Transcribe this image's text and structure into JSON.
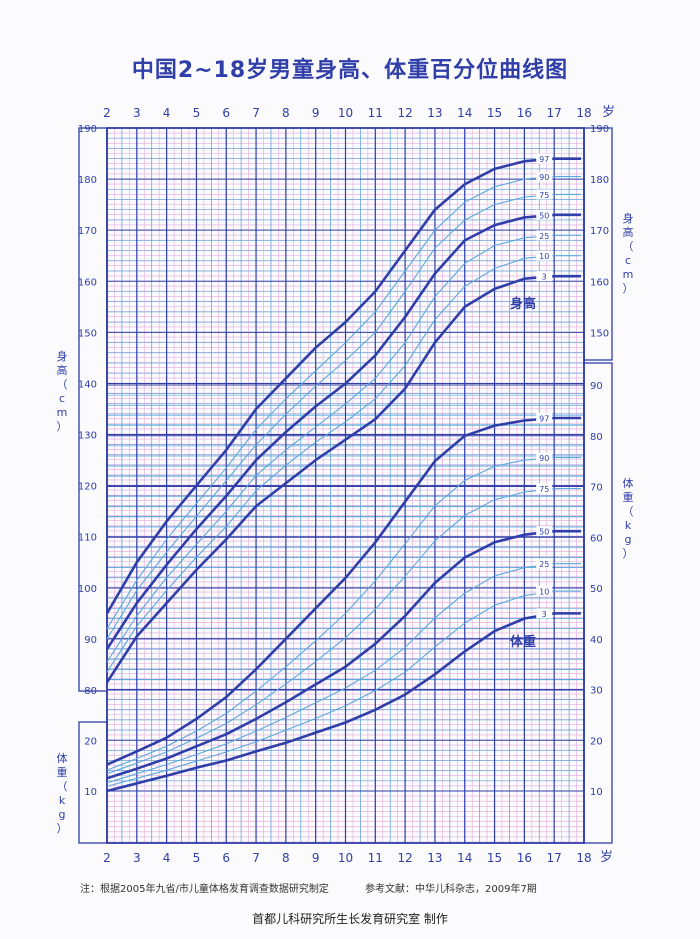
{
  "title": "中国2~18岁男童身高、体重百分位曲线图",
  "footnote": {
    "left": "注：根据2005年九省/市儿童体格发育调查数据研究制定",
    "right": "参考文献：中华儿科杂志，2009年7期"
  },
  "credit": "首都儿科研究所生长发育研究室  制作",
  "colors": {
    "major": "#2f3ea8",
    "minor": "#5aa8dc",
    "fine": "#e2aad8",
    "text": "#2f3ea8"
  },
  "chart_data": {
    "type": "line",
    "x_ticks": [
      "2",
      "3",
      "4",
      "5",
      "6",
      "7",
      "8",
      "9",
      "10",
      "11",
      "12",
      "13",
      "14",
      "15",
      "16",
      "17",
      "18"
    ],
    "x_unit": "岁",
    "height_axis_left": {
      "label": "身高（cm）",
      "ticks": [
        "80",
        "90",
        "100",
        "110",
        "120",
        "130",
        "140",
        "150",
        "160",
        "170",
        "180",
        "190"
      ]
    },
    "height_axis_right": {
      "label": "身高（cm）",
      "ticks": [
        "150",
        "160",
        "170",
        "180",
        "190"
      ]
    },
    "weight_axis_left": {
      "label": "体重（kg）",
      "ticks": [
        "10",
        "20"
      ]
    },
    "weight_axis_right": {
      "label": "体重（kg）",
      "ticks": [
        "10",
        "20",
        "30",
        "40",
        "50",
        "60",
        "70",
        "80",
        "90"
      ]
    },
    "height_label": "身高",
    "weight_label": "体重",
    "height_series": [
      {
        "name": "97",
        "x": [
          2,
          3,
          4,
          5,
          6,
          7,
          8,
          9,
          10,
          11,
          12,
          13,
          14,
          15,
          16,
          17
        ],
        "y": [
          95,
          105,
          113,
          120,
          127,
          135,
          141,
          147,
          152,
          158,
          166,
          174,
          179,
          182,
          183.5,
          184
        ]
      },
      {
        "name": "90",
        "x": [
          2,
          3,
          4,
          5,
          6,
          7,
          8,
          9,
          10,
          11,
          12,
          13,
          14,
          15,
          16,
          17
        ],
        "y": [
          92,
          101.5,
          109.5,
          116.5,
          123.5,
          131,
          137,
          142.5,
          148,
          154,
          162,
          170,
          175.5,
          178.5,
          180,
          180.5
        ]
      },
      {
        "name": "75",
        "x": [
          2,
          3,
          4,
          5,
          6,
          7,
          8,
          9,
          10,
          11,
          12,
          13,
          14,
          15,
          16,
          17
        ],
        "y": [
          90,
          99.5,
          107,
          114,
          121,
          128,
          134,
          139.5,
          144.5,
          150,
          158,
          166.5,
          172,
          175,
          176.5,
          177
        ]
      },
      {
        "name": "50",
        "x": [
          2,
          3,
          4,
          5,
          6,
          7,
          8,
          9,
          10,
          11,
          12,
          13,
          14,
          15,
          16,
          17
        ],
        "y": [
          88,
          97,
          104.5,
          111.5,
          118,
          125,
          130.5,
          135.5,
          140,
          145.5,
          153,
          161.5,
          168,
          171,
          172.5,
          173
        ]
      },
      {
        "name": "25",
        "x": [
          2,
          3,
          4,
          5,
          6,
          7,
          8,
          9,
          10,
          11,
          12,
          13,
          14,
          15,
          16,
          17
        ],
        "y": [
          85.5,
          94.5,
          102,
          108.5,
          115,
          122,
          127,
          131.5,
          136,
          141,
          148,
          157,
          163.5,
          167,
          168.5,
          169
        ]
      },
      {
        "name": "10",
        "x": [
          2,
          3,
          4,
          5,
          6,
          7,
          8,
          9,
          10,
          11,
          12,
          13,
          14,
          15,
          16,
          17
        ],
        "y": [
          83.5,
          92.5,
          99.5,
          106,
          112,
          119,
          124,
          128.5,
          132.5,
          137,
          143.5,
          152.5,
          159,
          162.5,
          164.5,
          165
        ]
      },
      {
        "name": "3",
        "x": [
          2,
          3,
          4,
          5,
          6,
          7,
          8,
          9,
          10,
          11,
          12,
          13,
          14,
          15,
          16,
          17
        ],
        "y": [
          81.5,
          90.5,
          97,
          103.5,
          109.5,
          116,
          120.5,
          125,
          129,
          133,
          139,
          148,
          155,
          158.5,
          160.5,
          161
        ]
      }
    ],
    "weight_series": [
      {
        "name": "97",
        "x": [
          2,
          3,
          4,
          5,
          6,
          7,
          8,
          9,
          10,
          11,
          12,
          13,
          14,
          15,
          16,
          17
        ],
        "y": [
          15.2,
          17.8,
          20.5,
          24.2,
          28.5,
          34,
          40,
          46,
          52,
          59,
          67,
          75,
          80,
          82,
          83,
          83.5
        ]
      },
      {
        "name": "90",
        "x": [
          2,
          3,
          4,
          5,
          6,
          7,
          8,
          9,
          10,
          11,
          12,
          13,
          14,
          15,
          16,
          17
        ],
        "y": [
          14.1,
          16.4,
          18.8,
          21.8,
          25.3,
          29.7,
          34.5,
          39.6,
          45,
          51.4,
          58.7,
          66.2,
          71.2,
          74,
          75.2,
          75.7
        ]
      },
      {
        "name": "75",
        "x": [
          2,
          3,
          4,
          5,
          6,
          7,
          8,
          9,
          10,
          11,
          12,
          13,
          14,
          15,
          16,
          17
        ],
        "y": [
          13.4,
          15.5,
          17.7,
          20.4,
          23.3,
          27,
          31.1,
          35.5,
          40.2,
          45.8,
          52.3,
          59.3,
          64.3,
          67.4,
          68.9,
          69.6
        ]
      },
      {
        "name": "50",
        "x": [
          2,
          3,
          4,
          5,
          6,
          7,
          8,
          9,
          10,
          11,
          12,
          13,
          14,
          15,
          16,
          17
        ],
        "y": [
          12.5,
          14.4,
          16.4,
          18.8,
          21.2,
          24.2,
          27.5,
          31,
          34.5,
          39,
          44.5,
          51,
          56,
          59,
          60.5,
          61.2
        ]
      },
      {
        "name": "25",
        "x": [
          2,
          3,
          4,
          5,
          6,
          7,
          8,
          9,
          10,
          11,
          12,
          13,
          14,
          15,
          16,
          17
        ],
        "y": [
          11.6,
          13.4,
          15.2,
          17.2,
          19.3,
          21.8,
          24.5,
          27.4,
          30.3,
          33.8,
          38.3,
          44.1,
          49,
          52.4,
          54,
          54.8
        ]
      },
      {
        "name": "10",
        "x": [
          2,
          3,
          4,
          5,
          6,
          7,
          8,
          9,
          10,
          11,
          12,
          13,
          14,
          15,
          16,
          17
        ],
        "y": [
          10.9,
          12.5,
          14.1,
          15.9,
          17.7,
          19.7,
          22,
          24.3,
          26.8,
          29.8,
          33.4,
          38.4,
          43.1,
          46.6,
          48.5,
          49.4
        ]
      },
      {
        "name": "3",
        "x": [
          2,
          3,
          4,
          5,
          6,
          7,
          8,
          9,
          10,
          11,
          12,
          13,
          14,
          15,
          16,
          17
        ],
        "y": [
          10,
          11.5,
          13,
          14.6,
          16,
          17.8,
          19.5,
          21.5,
          23.5,
          26,
          29,
          33,
          37.5,
          41.5,
          44,
          45
        ]
      }
    ]
  }
}
